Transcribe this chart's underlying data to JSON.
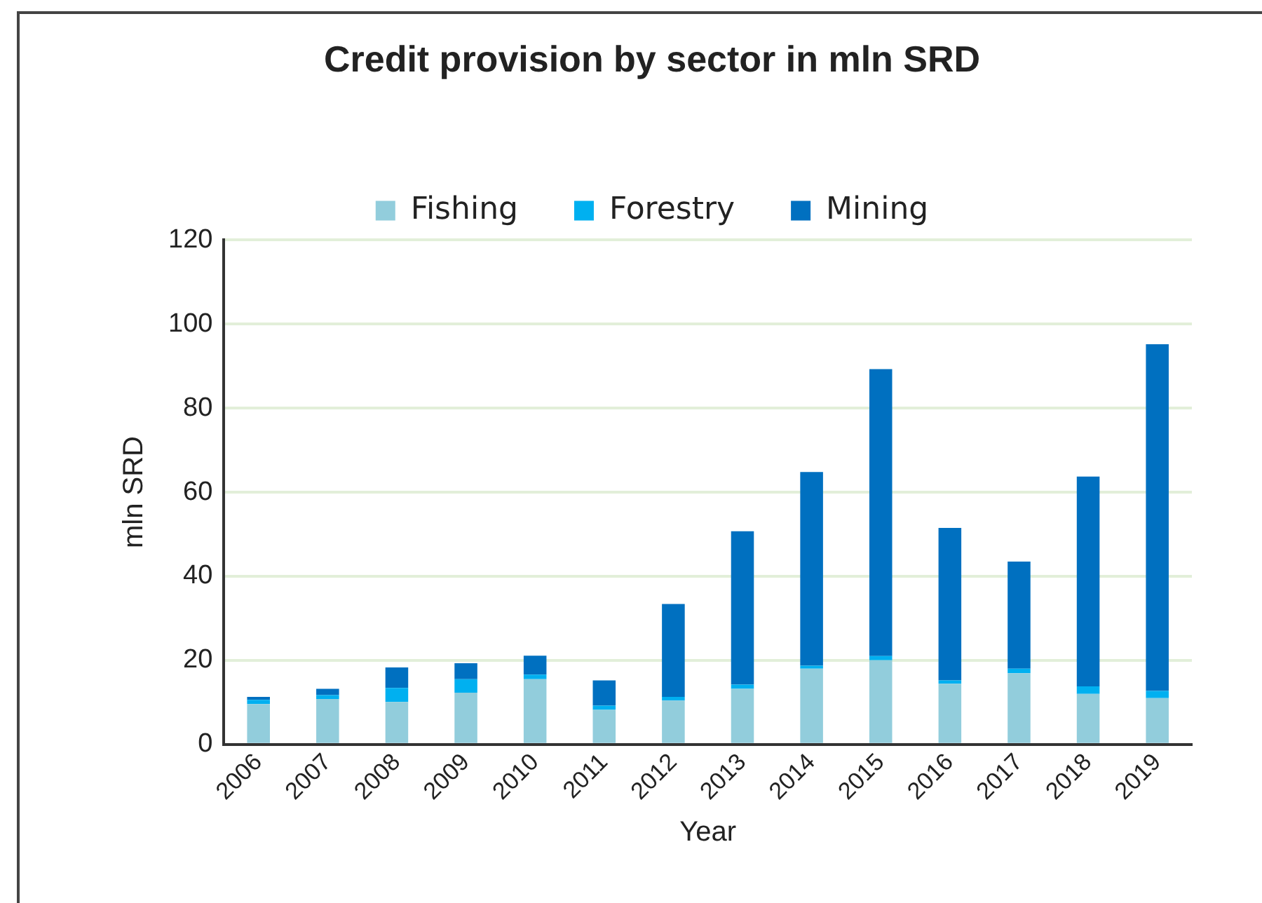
{
  "chart_data": {
    "type": "bar",
    "title": "Credit provision by sector in mln SRD",
    "xlabel": "Year",
    "ylabel": "mln SRD",
    "stacked": true,
    "legend": "top",
    "grid": "y",
    "categories": [
      "2006",
      "2007",
      "2008",
      "2009",
      "2010",
      "2011",
      "2012",
      "2013",
      "2014",
      "2015",
      "2016",
      "2017",
      "2018",
      "2019"
    ],
    "ylim": [
      0,
      120
    ],
    "yticks": [
      0,
      20,
      40,
      60,
      80,
      100,
      120
    ],
    "series": [
      {
        "name": "Fishing",
        "color": "#92cddc",
        "values": [
          9.6,
          10.8,
          10.1,
          12.3,
          15.5,
          8.2,
          10.4,
          13.2,
          18.0,
          20.0,
          14.4,
          16.9,
          12.0,
          11.0
        ]
      },
      {
        "name": "Forestry",
        "color": "#00b0f0",
        "values": [
          1.0,
          0.9,
          3.3,
          3.2,
          1.1,
          1.0,
          0.9,
          1.0,
          0.7,
          1.0,
          0.8,
          1.1,
          1.8,
          1.7
        ]
      },
      {
        "name": "Mining",
        "color": "#0070c0",
        "values": [
          0.7,
          1.5,
          4.9,
          3.8,
          4.5,
          6.0,
          22.1,
          36.5,
          46.1,
          68.3,
          36.3,
          25.5,
          49.9,
          82.5
        ]
      }
    ]
  }
}
